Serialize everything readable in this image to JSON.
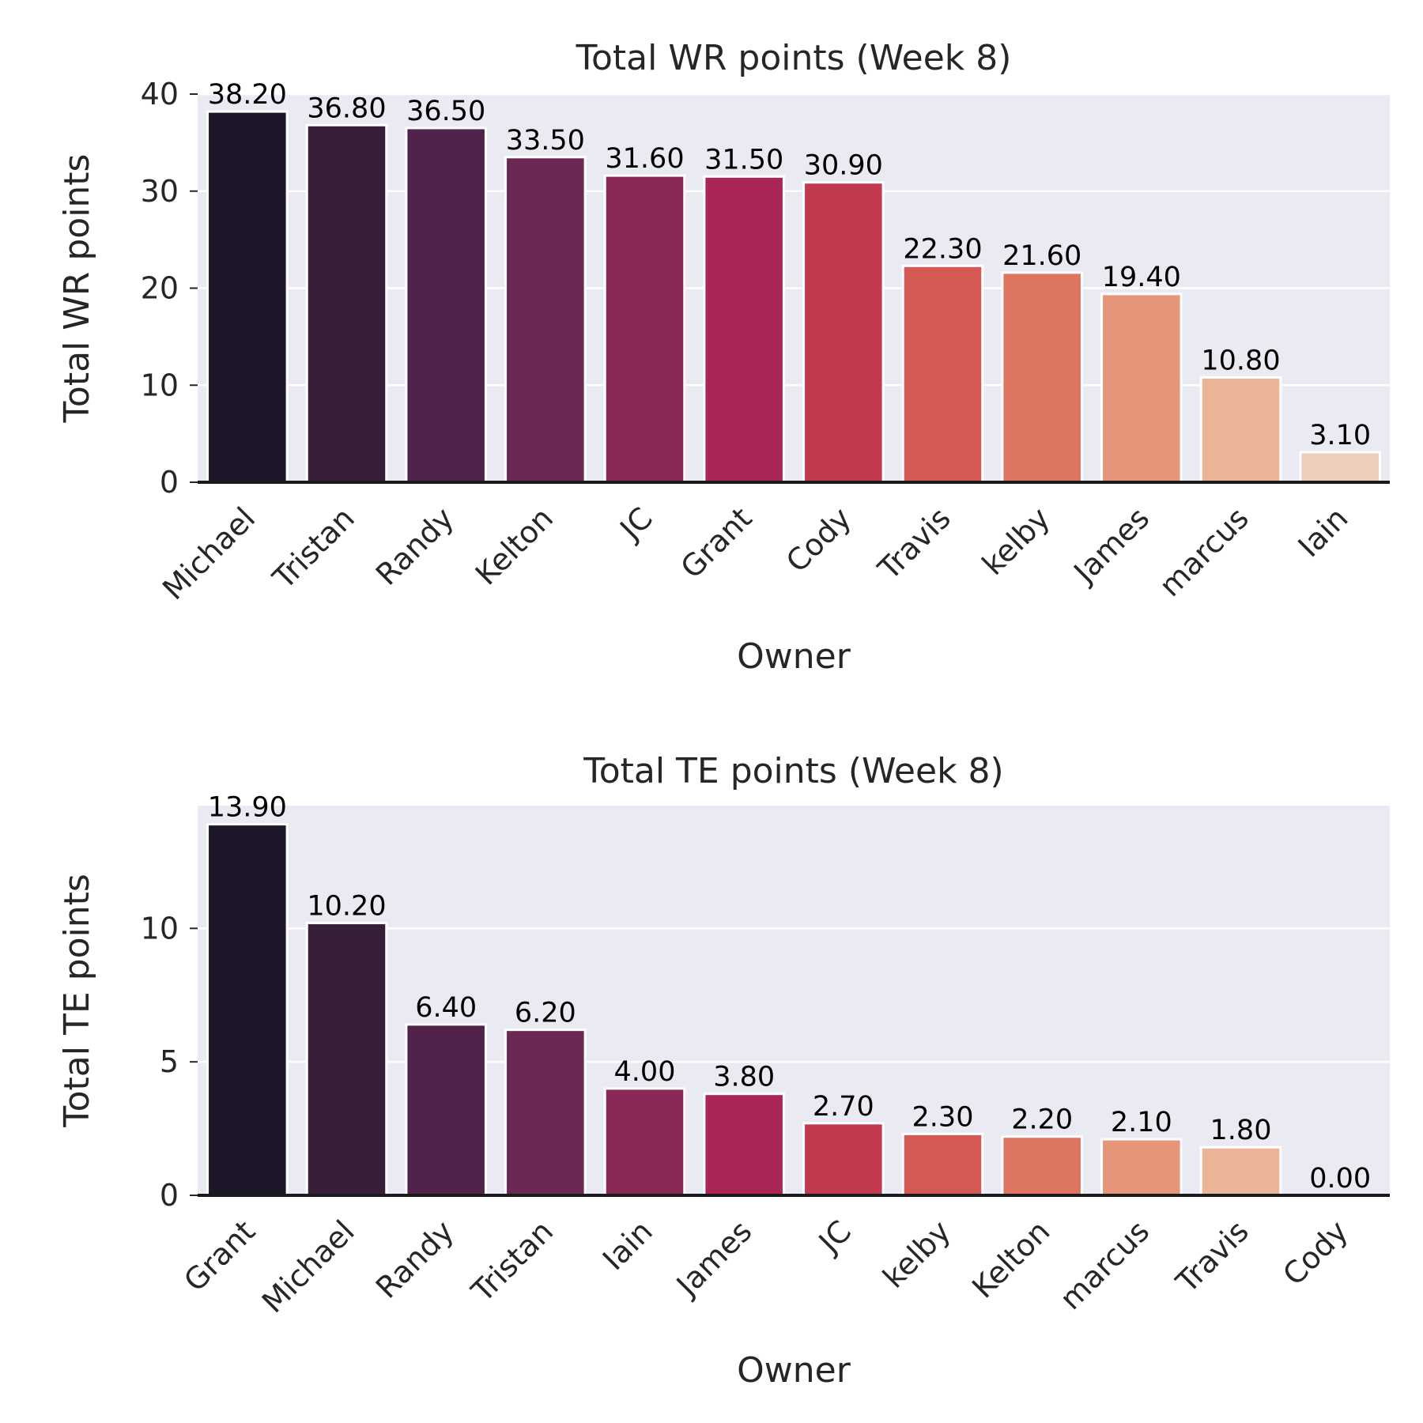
{
  "chart_data": [
    {
      "type": "bar",
      "title": "Total WR points (Week 8)",
      "xlabel": "Owner",
      "ylabel": "Total WR points",
      "categories": [
        "Michael",
        "Tristan",
        "Randy",
        "Kelton",
        "JC",
        "Grant",
        "Cody",
        "Travis",
        "kelby",
        "James",
        "marcus",
        "Iain"
      ],
      "values": [
        38.2,
        36.8,
        36.5,
        33.5,
        31.6,
        31.5,
        30.9,
        22.3,
        21.6,
        19.4,
        10.8,
        3.1
      ],
      "value_labels": [
        "38.20",
        "36.80",
        "36.50",
        "33.50",
        "31.60",
        "31.50",
        "30.90",
        "22.30",
        "21.60",
        "19.40",
        "10.80",
        "3.10"
      ],
      "ylim": [
        0,
        40
      ],
      "yticks": [
        0,
        10,
        20,
        30,
        40
      ],
      "ytick_labels": [
        "0",
        "10",
        "20",
        "30",
        "40"
      ],
      "grid": true,
      "colors": [
        "#1e1629",
        "#371e39",
        "#52234a",
        "#6b2854",
        "#8a2858",
        "#a92656",
        "#c13a50",
        "#d45b55",
        "#de7560",
        "#e5957a",
        "#e9b596",
        "#edcdbb"
      ]
    },
    {
      "type": "bar",
      "title": "Total TE points (Week 8)",
      "xlabel": "Owner",
      "ylabel": "Total TE points",
      "categories": [
        "Grant",
        "Michael",
        "Randy",
        "Tristan",
        "Iain",
        "James",
        "JC",
        "kelby",
        "Kelton",
        "marcus",
        "Travis",
        "Cody"
      ],
      "values": [
        13.9,
        10.2,
        6.4,
        6.2,
        4.0,
        3.8,
        2.7,
        2.3,
        2.2,
        2.1,
        1.8,
        0.0
      ],
      "value_labels": [
        "13.90",
        "10.20",
        "6.40",
        "6.20",
        "4.00",
        "3.80",
        "2.70",
        "2.30",
        "2.20",
        "2.10",
        "1.80",
        "0.00"
      ],
      "ylim": [
        0,
        14.6
      ],
      "yticks": [
        0,
        5,
        10
      ],
      "ytick_labels": [
        "0",
        "5",
        "10"
      ],
      "grid": true,
      "colors": [
        "#1e1629",
        "#371e39",
        "#52234a",
        "#6b2854",
        "#8a2858",
        "#a92656",
        "#c13a50",
        "#d45b55",
        "#de7560",
        "#e5957a",
        "#e9b596",
        "#edcdbb"
      ]
    }
  ]
}
